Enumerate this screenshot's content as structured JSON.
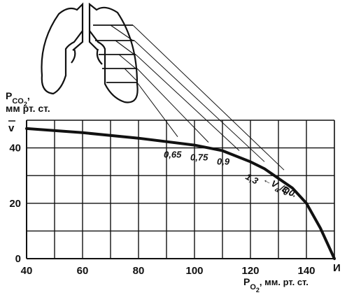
{
  "chart_data": {
    "type": "line",
    "y_title": {
      "main": "P",
      "sub": "CO",
      "sub2": "2",
      "comma": ",",
      "units": "мм рт. ст."
    },
    "x_title": {
      "main": "P",
      "sub": "O",
      "sub2": "2",
      "units": ", мм. рт. ст."
    },
    "x_ticks": [
      "40",
      "60",
      "80",
      "100",
      "120",
      "140"
    ],
    "y_ticks": [
      "0",
      "20",
      "40"
    ],
    "xlim": [
      40,
      150
    ],
    "ylim": [
      0,
      50
    ],
    "grid": true,
    "curve": {
      "x": [
        40,
        60,
        80,
        100,
        110,
        120,
        125,
        130,
        135,
        140,
        145,
        150
      ],
      "y": [
        47,
        45.5,
        43.5,
        41,
        39,
        35,
        32.5,
        29,
        25.5,
        20,
        11,
        0
      ]
    },
    "venous_label": "v",
    "arterial_label": "И",
    "va_ratios": [
      {
        "text": "0,65",
        "x": 89,
        "y": 41.5
      },
      {
        "text": "0,75",
        "x": 98.5,
        "y": 40.5
      },
      {
        "text": "0,9",
        "x": 108,
        "y": 39
      },
      {
        "text": "1,3",
        "x": 118,
        "y": 34
      },
      {
        "text": "V",
        "x": 126,
        "y": 31
      },
      {
        "text": "3,0",
        "x": 131,
        "y": 29.5
      }
    ],
    "va_label": "V",
    "va_sub": "a",
    "va_slash": "/Q",
    "va_arrow_left": "←",
    "va_arrow_right": "→"
  },
  "illustration": {
    "name": "lungs"
  }
}
